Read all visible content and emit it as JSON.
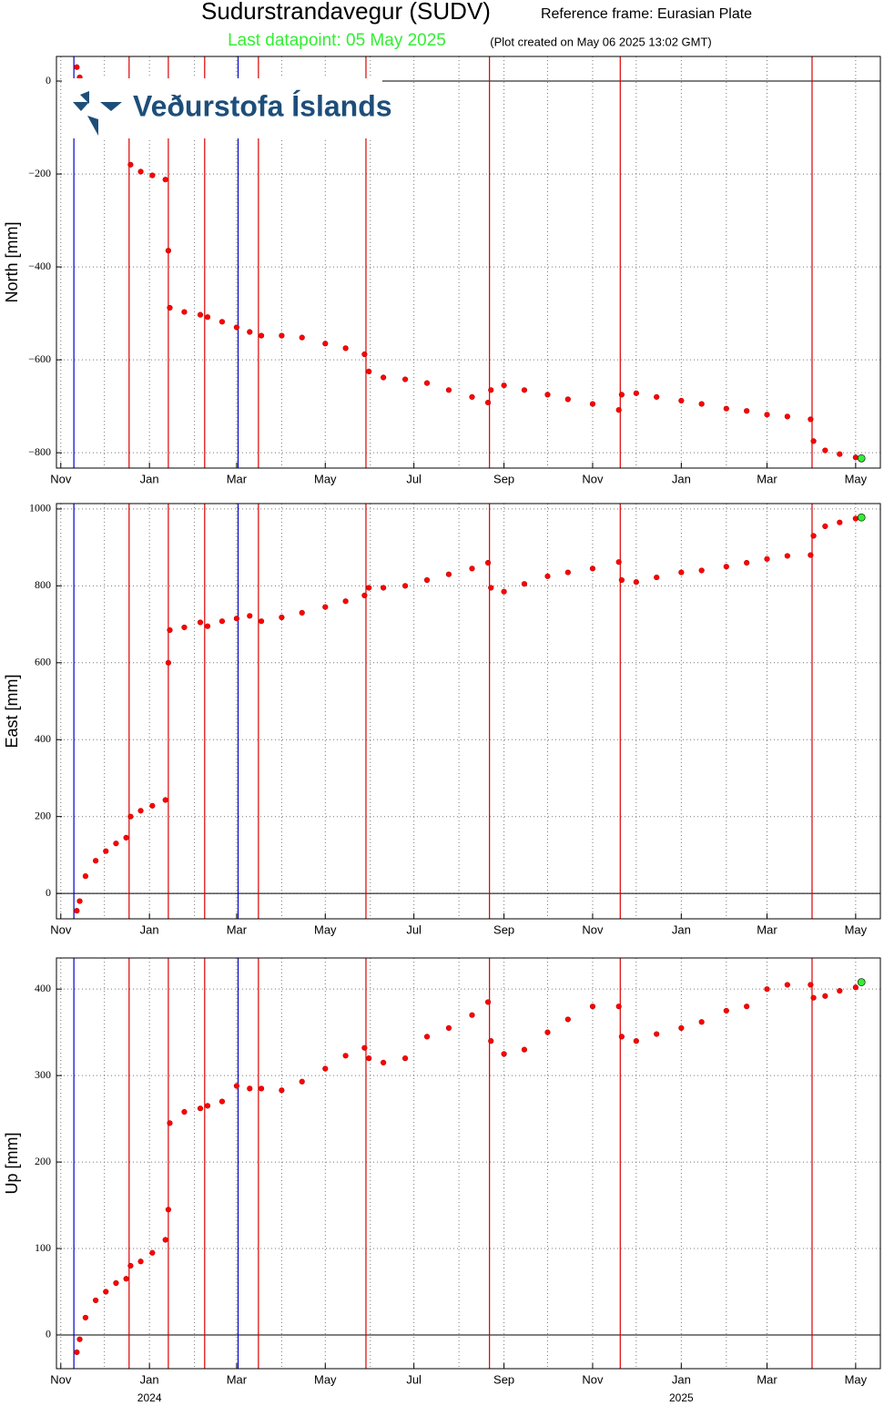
{
  "header": {
    "title": "Sudurstrandavegur (SUDV)",
    "reference": "Reference frame: Eurasian Plate",
    "last_datapoint": "Last datapoint: 05 May 2025",
    "created": "(Plot created on May 06 2025 13:02 GMT)",
    "last_color": "#33ee33"
  },
  "logo": {
    "text": "Veðurstofa Íslands"
  },
  "chart_data": [
    {
      "type": "scatter",
      "ylabel": "North [mm]",
      "color": "#ff0000",
      "grid": true,
      "xlim": [
        "2023-10-29",
        "2025-05-18"
      ],
      "ylim": [
        -833,
        53
      ],
      "yticks": [
        {
          "value": 0,
          "label": "0"
        },
        {
          "value": -200,
          "label": "−200"
        },
        {
          "value": -400,
          "label": "−400"
        },
        {
          "value": -600,
          "label": "−600"
        },
        {
          "value": -800,
          "label": "−800"
        }
      ],
      "xticks": [
        {
          "value": "2023-11-01",
          "label": "Nov"
        },
        {
          "value": "2024-01-01",
          "label": "Jan"
        },
        {
          "value": "2024-03-01",
          "label": "Mar"
        },
        {
          "value": "2024-05-01",
          "label": "May"
        },
        {
          "value": "2024-07-01",
          "label": "Jul"
        },
        {
          "value": "2024-09-01",
          "label": "Sep"
        },
        {
          "value": "2024-11-01",
          "label": "Nov"
        },
        {
          "value": "2025-01-01",
          "label": "Jan"
        },
        {
          "value": "2025-03-01",
          "label": "Mar"
        },
        {
          "value": "2025-05-01",
          "label": "May"
        }
      ],
      "xminor": [
        "2023-12-01",
        "2024-02-01",
        "2024-04-01",
        "2024-06-01",
        "2024-08-01",
        "2024-10-01",
        "2024-12-01",
        "2025-02-01",
        "2025-04-01"
      ],
      "events": [
        {
          "date": "2023-11-10",
          "color": "#0000cc"
        },
        {
          "date": "2023-12-18",
          "color": "#dd0000"
        },
        {
          "date": "2024-01-14",
          "color": "#dd0000"
        },
        {
          "date": "2024-02-08",
          "color": "#dd0000"
        },
        {
          "date": "2024-03-02",
          "color": "#0000cc"
        },
        {
          "date": "2024-03-16",
          "color": "#dd0000"
        },
        {
          "date": "2024-05-29",
          "color": "#dd0000"
        },
        {
          "date": "2024-08-22",
          "color": "#dd0000"
        },
        {
          "date": "2024-11-20",
          "color": "#dd0000"
        },
        {
          "date": "2025-04-01",
          "color": "#dd0000"
        }
      ],
      "x": [
        "2023-11-12",
        "2023-11-14",
        "2023-11-18",
        "2023-11-25",
        "2023-12-02",
        "2023-12-09",
        "2023-12-16",
        "2023-12-19",
        "2023-12-26",
        "2024-01-03",
        "2024-01-12",
        "2024-01-14",
        "2024-01-15",
        "2024-01-25",
        "2024-02-05",
        "2024-02-10",
        "2024-02-20",
        "2024-03-01",
        "2024-03-10",
        "2024-03-18",
        "2024-04-01",
        "2024-04-15",
        "2024-05-01",
        "2024-05-15",
        "2024-05-28",
        "2024-05-31",
        "2024-06-10",
        "2024-06-25",
        "2024-07-10",
        "2024-07-25",
        "2024-08-10",
        "2024-08-21",
        "2024-08-23",
        "2024-09-01",
        "2024-09-15",
        "2024-10-01",
        "2024-10-15",
        "2024-11-01",
        "2024-11-19",
        "2024-11-21",
        "2024-12-01",
        "2024-12-15",
        "2025-01-01",
        "2025-01-15",
        "2025-02-01",
        "2025-02-15",
        "2025-03-01",
        "2025-03-15",
        "2025-03-31",
        "2025-04-02",
        "2025-04-10",
        "2025-04-20",
        "2025-05-01",
        "2025-05-05"
      ],
      "values": [
        30,
        8,
        null,
        null,
        null,
        null,
        null,
        -180,
        -195,
        -203,
        -212,
        -365,
        -488,
        -497,
        -503,
        -508,
        -518,
        -530,
        -540,
        -548,
        -548,
        -552,
        -565,
        -575,
        -588,
        -625,
        -638,
        -642,
        -650,
        -665,
        -680,
        -692,
        -665,
        -655,
        -665,
        -675,
        -685,
        -695,
        -708,
        -675,
        -672,
        -680,
        -688,
        -695,
        -705,
        -710,
        -718,
        -722,
        -728,
        -775,
        -795,
        -803,
        -810,
        -812
      ]
    },
    {
      "type": "scatter",
      "ylabel": "East [mm]",
      "color": "#ff0000",
      "grid": true,
      "xlim": [
        "2023-10-29",
        "2025-05-18"
      ],
      "ylim": [
        -66,
        1014
      ],
      "yticks": [
        0,
        200,
        400,
        600,
        800,
        1000
      ],
      "xticks": [
        {
          "value": "2023-11-01",
          "label": "Nov"
        },
        {
          "value": "2024-01-01",
          "label": "Jan"
        },
        {
          "value": "2024-03-01",
          "label": "Mar"
        },
        {
          "value": "2024-05-01",
          "label": "May"
        },
        {
          "value": "2024-07-01",
          "label": "Jul"
        },
        {
          "value": "2024-09-01",
          "label": "Sep"
        },
        {
          "value": "2024-11-01",
          "label": "Nov"
        },
        {
          "value": "2025-01-01",
          "label": "Jan"
        },
        {
          "value": "2025-03-01",
          "label": "Mar"
        },
        {
          "value": "2025-05-01",
          "label": "May"
        }
      ],
      "xminor": [
        "2023-12-01",
        "2024-02-01",
        "2024-04-01",
        "2024-06-01",
        "2024-08-01",
        "2024-10-01",
        "2024-12-01",
        "2025-02-01",
        "2025-04-01"
      ],
      "events": [
        {
          "date": "2023-11-10",
          "color": "#0000cc"
        },
        {
          "date": "2023-12-18",
          "color": "#dd0000"
        },
        {
          "date": "2024-01-14",
          "color": "#dd0000"
        },
        {
          "date": "2024-02-08",
          "color": "#dd0000"
        },
        {
          "date": "2024-03-02",
          "color": "#0000cc"
        },
        {
          "date": "2024-03-16",
          "color": "#dd0000"
        },
        {
          "date": "2024-05-29",
          "color": "#dd0000"
        },
        {
          "date": "2024-08-22",
          "color": "#dd0000"
        },
        {
          "date": "2024-11-20",
          "color": "#dd0000"
        },
        {
          "date": "2025-04-01",
          "color": "#dd0000"
        }
      ],
      "x": [
        "2023-11-12",
        "2023-11-14",
        "2023-11-18",
        "2023-11-25",
        "2023-12-02",
        "2023-12-09",
        "2023-12-16",
        "2023-12-19",
        "2023-12-26",
        "2024-01-03",
        "2024-01-12",
        "2024-01-14",
        "2024-01-15",
        "2024-01-25",
        "2024-02-05",
        "2024-02-10",
        "2024-02-20",
        "2024-03-01",
        "2024-03-10",
        "2024-03-18",
        "2024-04-01",
        "2024-04-15",
        "2024-05-01",
        "2024-05-15",
        "2024-05-28",
        "2024-05-31",
        "2024-06-10",
        "2024-06-25",
        "2024-07-10",
        "2024-07-25",
        "2024-08-10",
        "2024-08-21",
        "2024-08-23",
        "2024-09-01",
        "2024-09-15",
        "2024-10-01",
        "2024-10-15",
        "2024-11-01",
        "2024-11-19",
        "2024-11-21",
        "2024-12-01",
        "2024-12-15",
        "2025-01-01",
        "2025-01-15",
        "2025-02-01",
        "2025-02-15",
        "2025-03-01",
        "2025-03-15",
        "2025-03-31",
        "2025-04-02",
        "2025-04-10",
        "2025-04-20",
        "2025-05-01",
        "2025-05-05"
      ],
      "values": [
        -45,
        -20,
        45,
        85,
        110,
        130,
        145,
        200,
        215,
        228,
        243,
        600,
        685,
        692,
        705,
        695,
        708,
        715,
        722,
        708,
        718,
        730,
        745,
        760,
        775,
        795,
        795,
        800,
        815,
        830,
        845,
        860,
        795,
        785,
        805,
        825,
        835,
        845,
        862,
        815,
        810,
        822,
        835,
        840,
        850,
        860,
        870,
        878,
        880,
        930,
        955,
        965,
        975,
        978
      ]
    },
    {
      "type": "scatter",
      "ylabel": "Up [mm]",
      "color": "#ff0000",
      "grid": true,
      "xlim": [
        "2023-10-29",
        "2025-05-18"
      ],
      "ylim": [
        -39,
        436
      ],
      "yticks": [
        0,
        100,
        200,
        300,
        400
      ],
      "xticks": [
        {
          "value": "2023-11-01",
          "label": "Nov"
        },
        {
          "value": "2024-01-01",
          "label": "Jan"
        },
        {
          "value": "2024-03-01",
          "label": "Mar"
        },
        {
          "value": "2024-05-01",
          "label": "May"
        },
        {
          "value": "2024-07-01",
          "label": "Jul"
        },
        {
          "value": "2024-09-01",
          "label": "Sep"
        },
        {
          "value": "2024-11-01",
          "label": "Nov"
        },
        {
          "value": "2025-01-01",
          "label": "Jan"
        },
        {
          "value": "2025-03-01",
          "label": "Mar"
        },
        {
          "value": "2025-05-01",
          "label": "May"
        }
      ],
      "xminor": [
        "2023-12-01",
        "2024-02-01",
        "2024-04-01",
        "2024-06-01",
        "2024-08-01",
        "2024-10-01",
        "2024-12-01",
        "2025-02-01",
        "2025-04-01"
      ],
      "year_labels": [
        {
          "value": "2024-01-01",
          "label": "2024"
        },
        {
          "value": "2025-01-01",
          "label": "2025"
        }
      ],
      "events": [
        {
          "date": "2023-11-10",
          "color": "#0000cc"
        },
        {
          "date": "2023-12-18",
          "color": "#dd0000"
        },
        {
          "date": "2024-01-14",
          "color": "#dd0000"
        },
        {
          "date": "2024-02-08",
          "color": "#dd0000"
        },
        {
          "date": "2024-03-02",
          "color": "#0000cc"
        },
        {
          "date": "2024-03-16",
          "color": "#dd0000"
        },
        {
          "date": "2024-05-29",
          "color": "#dd0000"
        },
        {
          "date": "2024-08-22",
          "color": "#dd0000"
        },
        {
          "date": "2024-11-20",
          "color": "#dd0000"
        },
        {
          "date": "2025-04-01",
          "color": "#dd0000"
        }
      ],
      "x": [
        "2023-11-12",
        "2023-11-14",
        "2023-11-18",
        "2023-11-25",
        "2023-12-02",
        "2023-12-09",
        "2023-12-16",
        "2023-12-19",
        "2023-12-26",
        "2024-01-03",
        "2024-01-12",
        "2024-01-14",
        "2024-01-15",
        "2024-01-25",
        "2024-02-05",
        "2024-02-10",
        "2024-02-20",
        "2024-03-01",
        "2024-03-10",
        "2024-03-18",
        "2024-04-01",
        "2024-04-15",
        "2024-05-01",
        "2024-05-15",
        "2024-05-28",
        "2024-05-31",
        "2024-06-10",
        "2024-06-25",
        "2024-07-10",
        "2024-07-25",
        "2024-08-10",
        "2024-08-21",
        "2024-08-23",
        "2024-09-01",
        "2024-09-15",
        "2024-10-01",
        "2024-10-15",
        "2024-11-01",
        "2024-11-19",
        "2024-11-21",
        "2024-12-01",
        "2024-12-15",
        "2025-01-01",
        "2025-01-15",
        "2025-02-01",
        "2025-02-15",
        "2025-03-01",
        "2025-03-15",
        "2025-03-31",
        "2025-04-02",
        "2025-04-10",
        "2025-04-20",
        "2025-05-01",
        "2025-05-05"
      ],
      "values": [
        -20,
        -5,
        20,
        40,
        50,
        60,
        65,
        80,
        85,
        95,
        110,
        145,
        245,
        258,
        262,
        265,
        270,
        288,
        285,
        285,
        283,
        293,
        308,
        323,
        332,
        320,
        315,
        320,
        345,
        355,
        370,
        385,
        340,
        325,
        330,
        350,
        365,
        380,
        380,
        345,
        340,
        348,
        355,
        362,
        375,
        380,
        400,
        405,
        405,
        390,
        392,
        398,
        402,
        408
      ]
    }
  ]
}
